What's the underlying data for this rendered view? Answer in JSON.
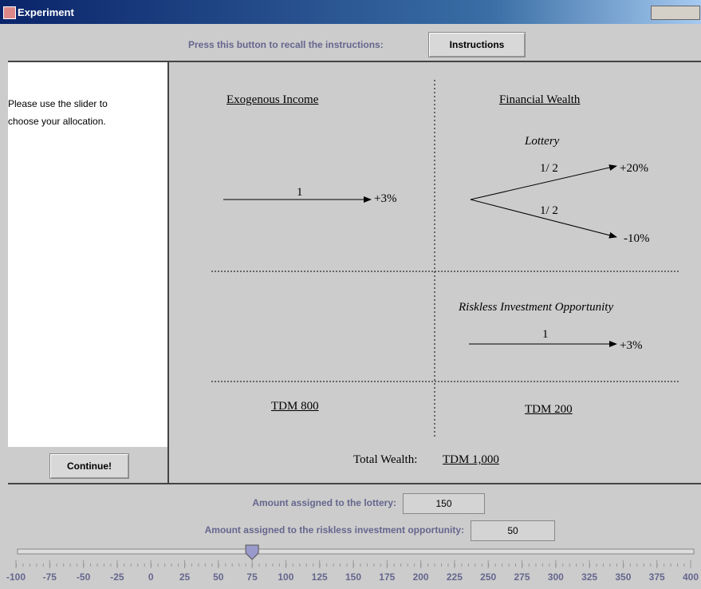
{
  "window": {
    "title": "Experiment"
  },
  "instructions_bar": {
    "prompt": "Press this button to recall the instructions:",
    "button": "Instructions"
  },
  "sidebar": {
    "text_lines": [
      "Please use the slider to",
      "choose your allocation."
    ],
    "button": "Continue!"
  },
  "diagram": {
    "exogenous": {
      "heading": "Exogenous Income",
      "probability": "1",
      "outcome": "+3%",
      "amount": "TDM 800"
    },
    "financial": {
      "heading": "Financial Wealth",
      "lottery": {
        "label": "Lottery",
        "branches": [
          {
            "probability": "1/ 2",
            "outcome": "+20%"
          },
          {
            "probability": "1/ 2",
            "outcome": "-10%"
          }
        ]
      },
      "riskless": {
        "label": "Riskless Investment Opportunity",
        "probability": "1",
        "outcome": "+3%"
      },
      "amount": "TDM 200"
    },
    "total": {
      "label": "Total Wealth:",
      "amount": "TDM 1,000"
    }
  },
  "allocation": {
    "lottery": {
      "label": "Amount assigned to the lottery:",
      "value": 150
    },
    "riskless": {
      "label": "Amount assigned to the riskless investment opportunity:",
      "value": 50
    }
  },
  "slider": {
    "min": -100,
    "max": 400,
    "value": 75,
    "ticks": [
      -100,
      -75,
      -50,
      -25,
      0,
      25,
      50,
      75,
      100,
      125,
      150,
      175,
      200,
      225,
      250,
      275,
      300,
      325,
      350,
      375,
      400
    ]
  }
}
